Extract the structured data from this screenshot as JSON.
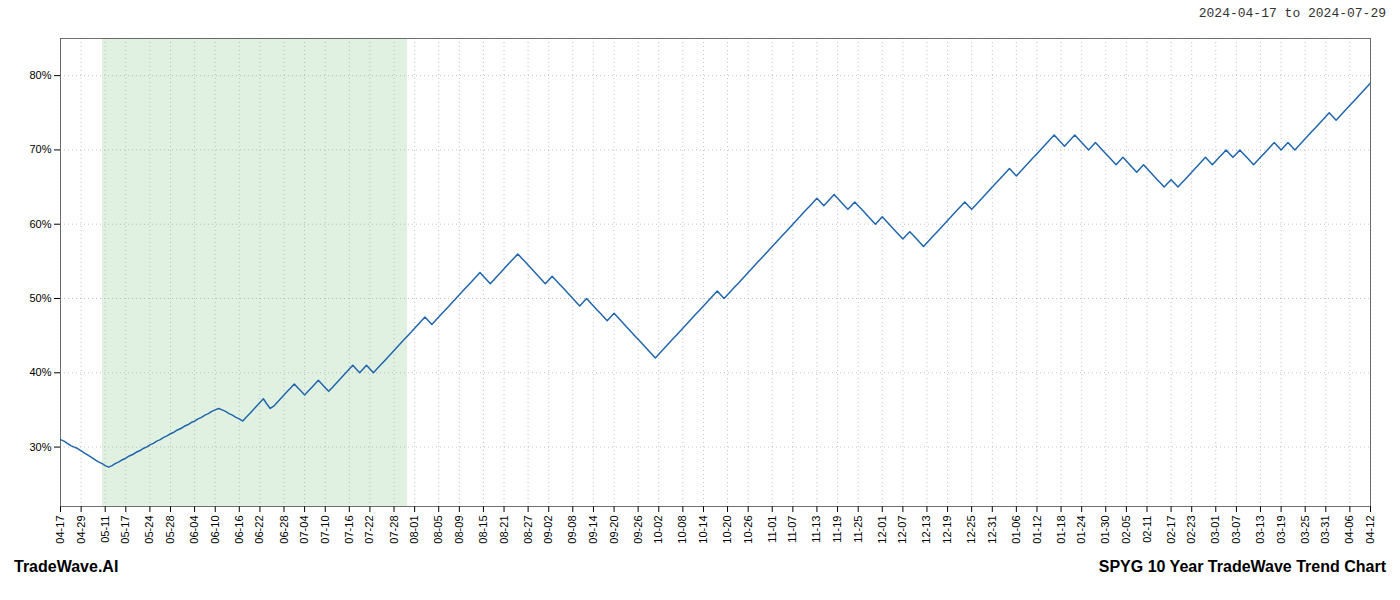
{
  "chart_data": {
    "type": "line",
    "title": "2024-04-17 to 2024-07-29",
    "annotations": [
      "TradeWave.AI",
      "SPYG 10 Year TradeWave Trend Chart"
    ],
    "color": "#2166ac",
    "grid": true,
    "ylim": [
      22,
      85
    ],
    "yticks": [
      {
        "value": 30,
        "label": "30%"
      },
      {
        "value": 40,
        "label": "40%"
      },
      {
        "value": 50,
        "label": "50%"
      },
      {
        "value": 60,
        "label": "60%"
      },
      {
        "value": 70,
        "label": "70%"
      },
      {
        "value": 80,
        "label": "80%"
      }
    ],
    "shade": {
      "x": [
        12.192,
        100.965
      ],
      "color": "#c8e6c9"
    },
    "categories": [
      "04-17",
      null,
      null,
      null,
      null,
      null,
      "04-29",
      null,
      null,
      null,
      null,
      null,
      null,
      "05-11",
      null,
      null,
      null,
      null,
      null,
      "05-17",
      null,
      null,
      null,
      null,
      null,
      null,
      "05-24",
      null,
      null,
      null,
      null,
      null,
      "05-28",
      null,
      null,
      null,
      null,
      null,
      null,
      "06-04",
      null,
      null,
      null,
      null,
      null,
      "06-10",
      null,
      null,
      null,
      null,
      null,
      null,
      "06-16",
      null,
      null,
      null,
      null,
      null,
      "06-22",
      null,
      null,
      null,
      null,
      null,
      null,
      "06-28",
      null,
      null,
      null,
      null,
      null,
      "07-04",
      null,
      null,
      null,
      null,
      null,
      "07-10",
      null,
      null,
      null,
      null,
      null,
      null,
      "07-16",
      null,
      null,
      null,
      null,
      null,
      "07-22",
      null,
      null,
      null,
      null,
      null,
      null,
      "07-28",
      null,
      null,
      null,
      null,
      null,
      "08-01",
      null,
      null,
      null,
      null,
      null,
      null,
      "08-05",
      null,
      null,
      null,
      null,
      null,
      "08-09",
      null,
      null,
      null,
      null,
      null,
      null,
      "08-15",
      null,
      null,
      null,
      null,
      null,
      "08-21",
      null,
      null,
      null,
      null,
      null,
      null,
      "08-27",
      null,
      null,
      null,
      null,
      null,
      "09-02",
      null,
      null,
      null,
      null,
      null,
      null,
      "09-08",
      null,
      null,
      null,
      null,
      null,
      "09-14",
      null,
      null,
      null,
      null,
      null,
      "09-20",
      null,
      null,
      null,
      null,
      null,
      null,
      "09-26",
      null,
      null,
      null,
      null,
      null,
      "10-02",
      null,
      null,
      null,
      null,
      null,
      null,
      "10-08",
      null,
      null,
      null,
      null,
      null,
      "10-14",
      null,
      null,
      null,
      null,
      null,
      null,
      "10-20",
      null,
      null,
      null,
      null,
      null,
      "10-26",
      null,
      null,
      null,
      null,
      null,
      null,
      "11-01",
      null,
      null,
      null,
      null,
      null,
      "11-07",
      null,
      null,
      null,
      null,
      null,
      null,
      "11-13",
      null,
      null,
      null,
      null,
      null,
      "11-19",
      null,
      null,
      null,
      null,
      null,
      "11-25",
      null,
      null,
      null,
      null,
      null,
      null,
      "12-01",
      null,
      null,
      null,
      null,
      null,
      "12-07",
      null,
      null,
      null,
      null,
      null,
      null,
      "12-13",
      null,
      null,
      null,
      null,
      null,
      "12-19",
      null,
      null,
      null,
      null,
      null,
      null,
      "12-25",
      null,
      null,
      null,
      null,
      null,
      "12-31",
      null,
      null,
      null,
      null,
      null,
      null,
      "01-06",
      null,
      null,
      null,
      null,
      null,
      "01-12",
      null,
      null,
      null,
      null,
      null,
      null,
      "01-18",
      null,
      null,
      null,
      null,
      null,
      "01-24",
      null,
      null,
      null,
      null,
      null,
      null,
      "01-30",
      null,
      null,
      null,
      null,
      null,
      "02-05",
      null,
      null,
      null,
      null,
      null,
      "02-11",
      null,
      null,
      null,
      null,
      null,
      null,
      "02-17",
      null,
      null,
      null,
      null,
      null,
      "02-23",
      null,
      null,
      null,
      null,
      null,
      null,
      "03-01",
      null,
      null,
      null,
      null,
      null,
      "03-07",
      null,
      null,
      null,
      null,
      null,
      null,
      "03-13",
      null,
      null,
      null,
      null,
      null,
      "03-19",
      null,
      null,
      null,
      null,
      null,
      null,
      "03-25",
      null,
      null,
      null,
      null,
      null,
      "03-31",
      null,
      null,
      null,
      null,
      null,
      null,
      "04-06",
      null,
      null,
      null,
      null,
      null,
      "04-12"
    ],
    "values": [
      31.0,
      30.8,
      30.5,
      30.2,
      30.0,
      29.8,
      29.5,
      29.2,
      28.9,
      28.6,
      28.3,
      28.0,
      27.8,
      27.5,
      27.3,
      27.5,
      27.8,
      28.0,
      28.3,
      28.5,
      28.8,
      29.0,
      29.3,
      29.5,
      29.8,
      30.0,
      30.3,
      30.5,
      30.8,
      31.0,
      31.3,
      31.5,
      31.8,
      32.0,
      32.3,
      32.5,
      32.8,
      33.0,
      33.3,
      33.5,
      33.8,
      34.0,
      34.3,
      34.5,
      34.8,
      35.0,
      35.2,
      35.0,
      34.8,
      34.5,
      34.3,
      34.0,
      33.8,
      33.5,
      34.0,
      34.5,
      35.0,
      35.5,
      36.0,
      36.5,
      35.8,
      35.2,
      35.5,
      36.0,
      36.5,
      37.0,
      37.5,
      38.0,
      38.5,
      38.0,
      37.5,
      37.0,
      37.5,
      38.0,
      38.5,
      39.0,
      38.5,
      38.0,
      37.5,
      38.0,
      38.5,
      39.0,
      39.5,
      40.0,
      40.5,
      41.0,
      40.5,
      40.0,
      40.5,
      41.0,
      40.5,
      40.0,
      40.5,
      41.0,
      41.5,
      42.0,
      42.5,
      43.0,
      43.5,
      44.0,
      44.5,
      45.0,
      45.5,
      46.0,
      46.5,
      47.0,
      47.5,
      47.0,
      46.5,
      47.0,
      47.5,
      48.0,
      48.5,
      49.0,
      49.5,
      50.0,
      50.5,
      51.0,
      51.5,
      52.0,
      52.5,
      53.0,
      53.5,
      53.0,
      52.5,
      52.0,
      52.5,
      53.0,
      53.5,
      54.0,
      54.5,
      55.0,
      55.5,
      56.0,
      55.5,
      55.0,
      54.5,
      54.0,
      53.5,
      53.0,
      52.5,
      52.0,
      52.5,
      53.0,
      52.5,
      52.0,
      51.5,
      51.0,
      50.5,
      50.0,
      49.5,
      49.0,
      49.5,
      50.0,
      49.5,
      49.0,
      48.5,
      48.0,
      47.5,
      47.0,
      47.5,
      48.0,
      47.5,
      47.0,
      46.5,
      46.0,
      45.5,
      45.0,
      44.5,
      44.0,
      43.5,
      43.0,
      42.5,
      42.0,
      42.5,
      43.0,
      43.5,
      44.0,
      44.5,
      45.0,
      45.5,
      46.0,
      46.5,
      47.0,
      47.5,
      48.0,
      48.5,
      49.0,
      49.5,
      50.0,
      50.5,
      51.0,
      50.5,
      50.0,
      50.5,
      51.0,
      51.5,
      52.0,
      52.5,
      53.0,
      53.5,
      54.0,
      54.5,
      55.0,
      55.5,
      56.0,
      56.5,
      57.0,
      57.5,
      58.0,
      58.5,
      59.0,
      59.5,
      60.0,
      60.5,
      61.0,
      61.5,
      62.0,
      62.5,
      63.0,
      63.5,
      63.0,
      62.5,
      63.0,
      63.5,
      64.0,
      63.5,
      63.0,
      62.5,
      62.0,
      62.5,
      63.0,
      62.5,
      62.0,
      61.5,
      61.0,
      60.5,
      60.0,
      60.5,
      61.0,
      60.5,
      60.0,
      59.5,
      59.0,
      58.5,
      58.0,
      58.5,
      59.0,
      58.5,
      58.0,
      57.5,
      57.0,
      57.5,
      58.0,
      58.5,
      59.0,
      59.5,
      60.0,
      60.5,
      61.0,
      61.5,
      62.0,
      62.5,
      63.0,
      62.5,
      62.0,
      62.5,
      63.0,
      63.5,
      64.0,
      64.5,
      65.0,
      65.5,
      66.0,
      66.5,
      67.0,
      67.5,
      67.0,
      66.5,
      67.0,
      67.5,
      68.0,
      68.5,
      69.0,
      69.5,
      70.0,
      70.5,
      71.0,
      71.5,
      72.0,
      71.5,
      71.0,
      70.5,
      71.0,
      71.5,
      72.0,
      71.5,
      71.0,
      70.5,
      70.0,
      70.5,
      71.0,
      70.5,
      70.0,
      69.5,
      69.0,
      68.5,
      68.0,
      68.5,
      69.0,
      68.5,
      68.0,
      67.5,
      67.0,
      67.5,
      68.0,
      67.5,
      67.0,
      66.5,
      66.0,
      65.5,
      65.0,
      65.5,
      66.0,
      65.5,
      65.0,
      65.5,
      66.0,
      66.5,
      67.0,
      67.5,
      68.0,
      68.5,
      69.0,
      68.5,
      68.0,
      68.5,
      69.0,
      69.5,
      70.0,
      69.5,
      69.0,
      69.5,
      70.0,
      69.5,
      69.0,
      68.5,
      68.0,
      68.5,
      69.0,
      69.5,
      70.0,
      70.5,
      71.0,
      70.5,
      70.0,
      70.5,
      71.0,
      70.5,
      70.0,
      70.5,
      71.0,
      71.5,
      72.0,
      72.5,
      73.0,
      73.5,
      74.0,
      74.5,
      75.0,
      74.5,
      74.0,
      74.5,
      75.0,
      75.5,
      76.0,
      76.5,
      77.0,
      77.5,
      78.0,
      78.5,
      79.0
    ]
  }
}
